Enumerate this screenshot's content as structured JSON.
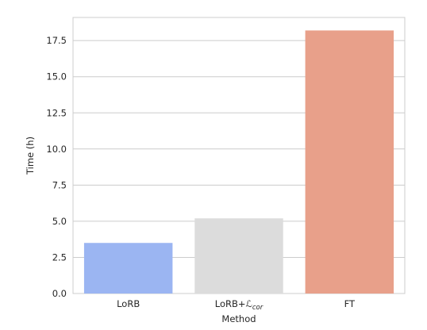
{
  "chart_data": {
    "type": "bar",
    "xlabel": "Method",
    "ylabel": "Time (h)",
    "categories": [
      {
        "base": "LoRB",
        "suffix": ""
      },
      {
        "base": "LoRB+ℒ",
        "suffix": "cor"
      },
      {
        "base": "FT",
        "suffix": ""
      }
    ],
    "values": [
      3.5,
      5.2,
      18.2
    ],
    "colors": [
      "#9bb5f2",
      "#dcdcdc",
      "#e8a08a"
    ],
    "yticks": [
      "0.0",
      "2.5",
      "5.0",
      "7.5",
      "10.0",
      "12.5",
      "15.0",
      "17.5"
    ],
    "ylim": [
      0,
      19.1
    ],
    "grid": true
  }
}
